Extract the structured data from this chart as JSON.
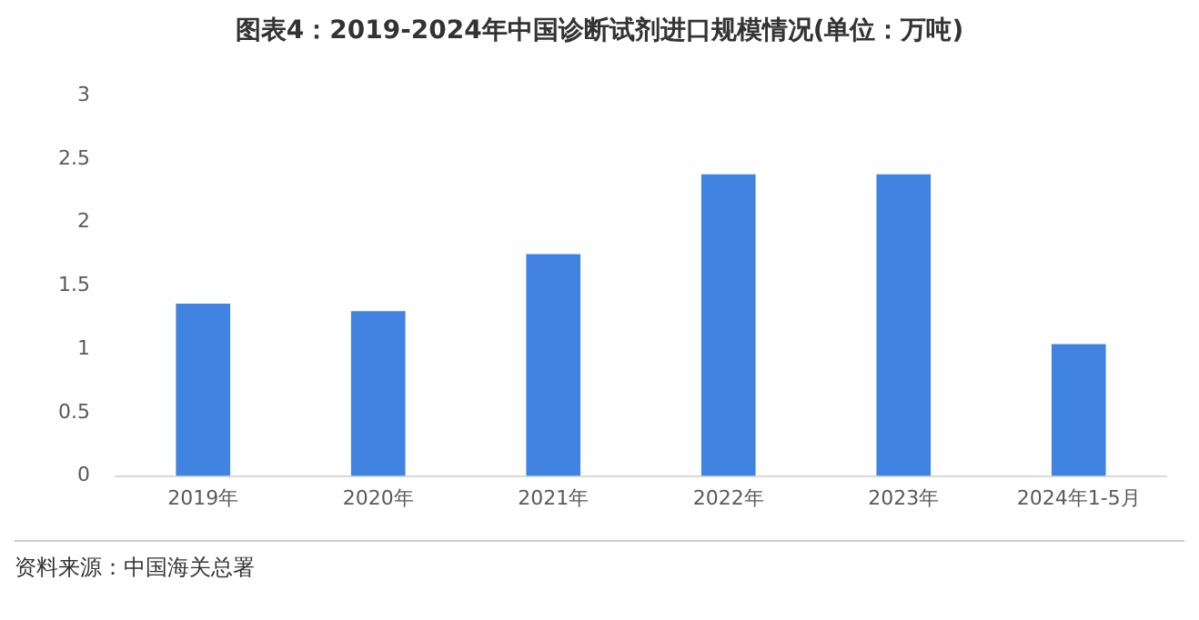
{
  "chart_data": {
    "type": "bar",
    "title": "图表4：2019-2024年中国诊断试剂进口规模情况(单位：万吨)",
    "categories": [
      "2019年",
      "2020年",
      "2021年",
      "2022年",
      "2023年",
      "2024年1-5月"
    ],
    "values": [
      1.36,
      1.3,
      1.75,
      2.38,
      2.38,
      1.04
    ],
    "color": "#4083e0",
    "ylim": [
      0,
      3
    ],
    "yticks": [
      0,
      0.5,
      1,
      1.5,
      2,
      2.5,
      3
    ],
    "grid": false,
    "annotations": [
      "资料来源：中国海关总署"
    ]
  }
}
